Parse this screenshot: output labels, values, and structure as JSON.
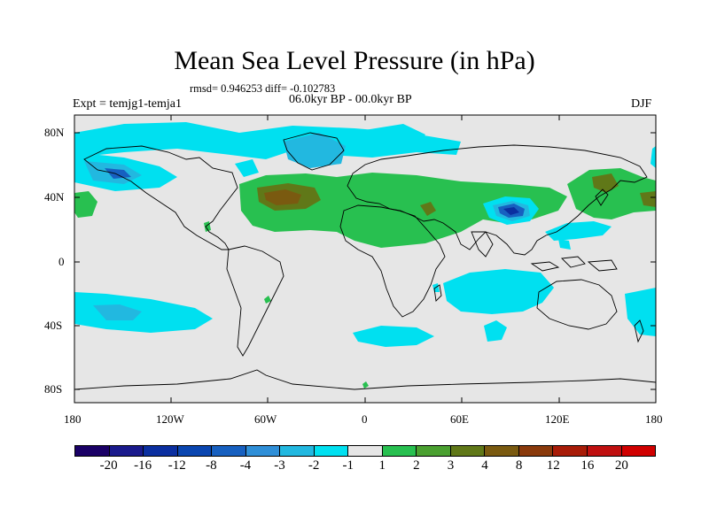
{
  "figure": {
    "title": "Mean Sea Level Pressure (in hPa)",
    "stats": "rmsd= 0.946253 diff= -0.102783",
    "experiment": "Expt = temjg1-temja1",
    "period": "06.0kyr BP - 00.0kyr BP",
    "season": "DJF"
  },
  "axes": {
    "lat_labels": [
      "80N",
      "40N",
      "0",
      "40S",
      "80S"
    ],
    "lon_labels": [
      "180",
      "120W",
      "60W",
      "0",
      "60E",
      "120E",
      "180"
    ]
  },
  "colorbar": {
    "labels": [
      "-20",
      "-16",
      "-12",
      "-8",
      "-4",
      "-3",
      "-2",
      "-1",
      "1",
      "2",
      "3",
      "4",
      "8",
      "12",
      "16",
      "20"
    ],
    "colors": [
      "#1a0066",
      "#1a1a8c",
      "#0b2fa0",
      "#0a46b0",
      "#1760c0",
      "#2f8fd8",
      "#22b8e0",
      "#00e0f0",
      "#e6e6e6",
      "#28c050",
      "#4aa030",
      "#607818",
      "#7a5a10",
      "#8a3a0c",
      "#a81c08",
      "#c01010",
      "#d00000"
    ]
  },
  "map_colors": {
    "background": "#e6e6e6",
    "cyan": "#00e0f0",
    "light_blue": "#22b8e0",
    "blue": "#1760c0",
    "dark_blue": "#0b2fa0",
    "green": "#28c050",
    "olive": "#607818",
    "brown": "#7a5a10"
  }
}
